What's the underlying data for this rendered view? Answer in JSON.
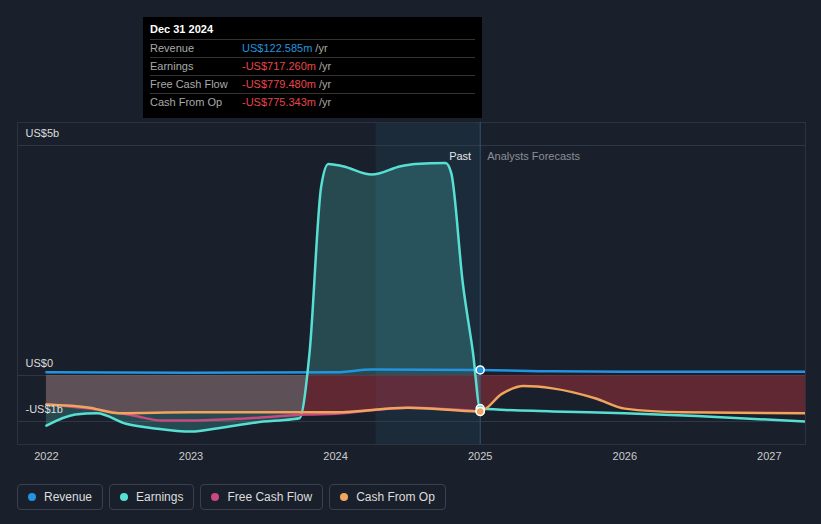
{
  "chart_data": {
    "type": "line",
    "xlim": [
      2021.8,
      2027.25
    ],
    "xticks": [
      2022,
      2023,
      2024,
      2025,
      2026,
      2027
    ],
    "ylim": [
      -1.5,
      5.5
    ],
    "yticks": [
      {
        "value": 5,
        "label": "US$5b"
      },
      {
        "value": 0,
        "label": "US$0"
      },
      {
        "value": -1,
        "label": "-US$1b"
      }
    ],
    "grid": true,
    "legend": "bottom",
    "divider": {
      "x": 2025,
      "left_label": "Past",
      "right_label": "Analysts Forecasts"
    },
    "highlight": [
      2024.28,
      2025
    ],
    "tooltip": {
      "title": "Dec 31 2024",
      "rows": [
        {
          "label": "Revenue",
          "value": "US$122.585m",
          "unit": "/yr"
        },
        {
          "label": "Earnings",
          "value": "-US$717.260m",
          "unit": "/yr"
        },
        {
          "label": "Free Cash Flow",
          "value": "-US$779.480m",
          "unit": "/yr"
        },
        {
          "label": "Cash From Op",
          "value": "-US$775.343m",
          "unit": "/yr"
        }
      ]
    },
    "series": [
      {
        "name": "Revenue",
        "color": "#2394df",
        "x": [
          2022,
          2023,
          2024,
          2024.25,
          2025,
          2025.5,
          2026,
          2027.25
        ],
        "values": [
          0.07,
          0.06,
          0.07,
          0.13,
          0.12,
          0.09,
          0.08,
          0.08
        ]
      },
      {
        "name": "Earnings",
        "color": "#58dfd4",
        "x": [
          2022,
          2022.2,
          2022.35,
          2022.55,
          2022.75,
          2023,
          2023.2,
          2023.45,
          2023.7,
          2023.75,
          2023.82,
          2023.9,
          2023.95,
          2024.05,
          2024.25,
          2024.45,
          2024.55,
          2024.76,
          2024.8,
          2024.88,
          2024.95,
          2025,
          2025.5,
          2026,
          2026.5,
          2027.25
        ],
        "values": [
          -1.09,
          -0.85,
          -0.82,
          -1.05,
          -1.15,
          -1.22,
          -1.14,
          -1.02,
          -0.95,
          -0.93,
          0.5,
          4.1,
          4.6,
          4.55,
          4.37,
          4.55,
          4.6,
          4.62,
          4.4,
          2.0,
          0.5,
          -0.72,
          -0.78,
          -0.82,
          -0.88,
          -1.0
        ]
      },
      {
        "name": "Free Cash Flow",
        "color": "#c94a7f",
        "x": [
          2022,
          2022.3,
          2022.6,
          2022.8,
          2023,
          2023.4,
          2023.8,
          2024,
          2024.5,
          2025
        ],
        "values": [
          -0.63,
          -0.72,
          -0.87,
          -0.98,
          -0.98,
          -0.93,
          -0.85,
          -0.83,
          -0.7,
          -0.78
        ]
      },
      {
        "name": "Cash From Op",
        "color": "#f0a45e",
        "x": [
          2022,
          2022.3,
          2022.5,
          2023,
          2023.5,
          2024,
          2024.5,
          2025,
          2025.15,
          2025.3,
          2025.5,
          2025.8,
          2026,
          2026.4,
          2027.25
        ],
        "values": [
          -0.63,
          -0.7,
          -0.82,
          -0.8,
          -0.8,
          -0.8,
          -0.7,
          -0.78,
          -0.4,
          -0.23,
          -0.28,
          -0.5,
          -0.72,
          -0.8,
          -0.82
        ]
      }
    ]
  }
}
